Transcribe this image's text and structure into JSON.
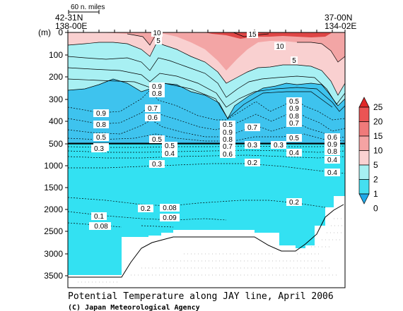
{
  "chart_data": {
    "type": "heatmap",
    "title": "Potential Temperature along JAY line, April 2006",
    "credit": "(C) Japan Meteorological Agency",
    "scale_bar_label": "60 n. miles",
    "start_station": {
      "lat": "42-31N",
      "lon": "138-00E"
    },
    "end_station": {
      "lat": "37-00N",
      "lon": "134-02E"
    },
    "yunit": "(m)",
    "y_ticks_upper": [
      "0",
      "100",
      "200",
      "300",
      "400",
      "500"
    ],
    "y_ticks_lower": [
      "1000",
      "1500",
      "2000",
      "2500",
      "3000",
      "3500"
    ],
    "ylim_upper": [
      0,
      500
    ],
    "ylim_lower": [
      500,
      3800
    ],
    "colorbar": {
      "levels": [
        "25",
        "20",
        "15",
        "10",
        "5",
        "2",
        "1",
        "0"
      ],
      "colors": [
        "#e02828",
        "#eb5454",
        "#f07a7a",
        "#f5a3a3",
        "#fad2d2",
        "#a6f0f2",
        "#45dff0",
        "#1fa8e8"
      ]
    },
    "contour_labels": [
      "10",
      "15",
      "10",
      "5",
      "5",
      "0.9",
      "0.8",
      "0.7",
      "0.6",
      "0.9",
      "0.8",
      "0.7",
      "0.6",
      "0.5",
      "0.9",
      "0.8",
      "0.7",
      "0.6",
      "0.5",
      "0.9",
      "0.8",
      "0.7",
      "0.6",
      "0.9",
      "0.8",
      "0.7",
      "0.5",
      "0.5",
      "0.5",
      "0.5",
      "0.4",
      "0.3",
      "0.4",
      "0.3",
      "0.4",
      "0.3",
      "0.4",
      "0.3",
      "0.2",
      "0.2",
      "0.2",
      "0.1",
      "0.09",
      "0.08",
      "0.09",
      "0.08",
      "0.1"
    ]
  },
  "colors": {
    "deep": "#33e1f2",
    "upper_blue": "#3ec3ee",
    "light_cyan": "#a8f0f3",
    "pink_light": "#f9d0d0",
    "pink_mid": "#f3a5a5",
    "red": "#df4646"
  }
}
